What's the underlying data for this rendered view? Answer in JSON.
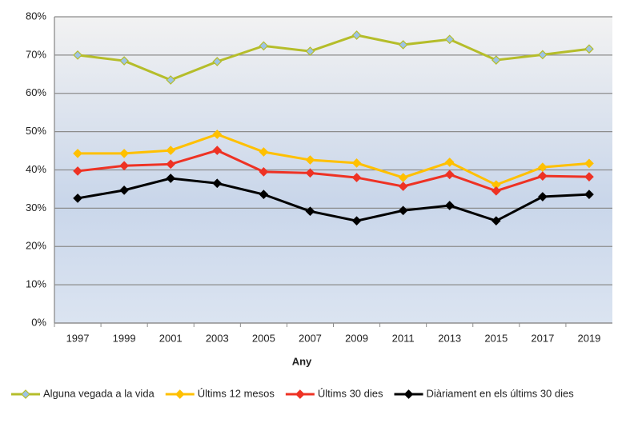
{
  "chart_data": {
    "type": "line",
    "x_label": "Any",
    "categories": [
      "1997",
      "1999",
      "2001",
      "2003",
      "2005",
      "2007",
      "2009",
      "2011",
      "2013",
      "2015",
      "2017",
      "2019"
    ],
    "ylim": [
      0,
      80
    ],
    "yticks": [
      {
        "value": 0,
        "label": "0%"
      },
      {
        "value": 10,
        "label": "10%"
      },
      {
        "value": 20,
        "label": "20%"
      },
      {
        "value": 30,
        "label": "30%"
      },
      {
        "value": 40,
        "label": "40%"
      },
      {
        "value": 50,
        "label": "50%"
      },
      {
        "value": 60,
        "label": "60%"
      },
      {
        "value": 70,
        "label": "70%"
      },
      {
        "value": 80,
        "label": "80%"
      }
    ],
    "grid": true,
    "legend": "bottom",
    "series": [
      {
        "name": "Alguna vegada a la vida",
        "color": "#b5bd2a",
        "marker_color": "#9dc3e6",
        "values": [
          70,
          68.5,
          63.5,
          68.3,
          72.4,
          71,
          75.2,
          72.7,
          74.1,
          68.7,
          70.1,
          71.6
        ]
      },
      {
        "name": "Últims 12 mesos",
        "color": "#ffc000",
        "marker_color": "#ffc000",
        "values": [
          44.3,
          44.3,
          45.1,
          49.3,
          44.7,
          42.6,
          41.8,
          38,
          42,
          36.1,
          40.7,
          41.7
        ]
      },
      {
        "name": "Últims 30 dies",
        "color": "#ee3224",
        "marker_color": "#ee3224",
        "values": [
          39.7,
          41.1,
          41.5,
          45.1,
          39.5,
          39.2,
          38,
          35.7,
          38.8,
          34.5,
          38.4,
          38.2
        ]
      },
      {
        "name": "Diàriament en els últims 30 dies",
        "color": "#000000",
        "marker_color": "#000000",
        "values": [
          32.6,
          34.7,
          37.8,
          36.5,
          33.6,
          29.2,
          26.7,
          29.4,
          30.7,
          26.7,
          33,
          33.6
        ]
      }
    ]
  }
}
